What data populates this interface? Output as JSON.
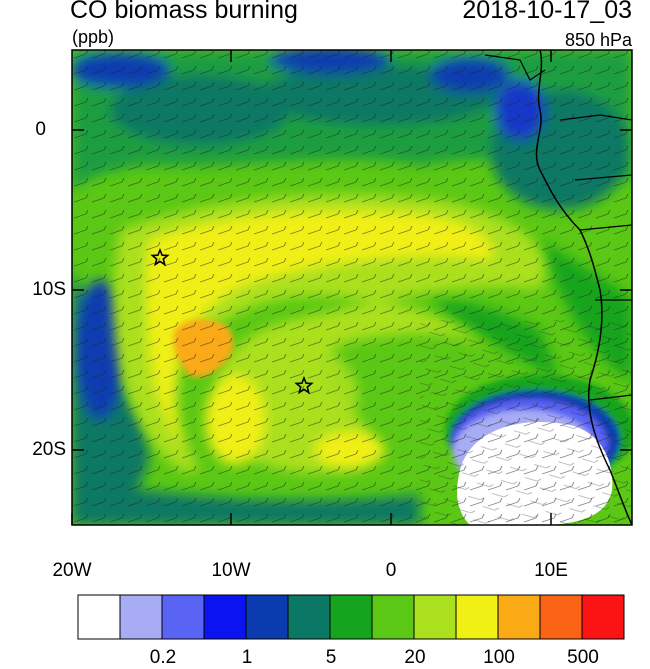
{
  "header": {
    "title": "CO biomass burning",
    "units": "(ppb)",
    "datetime": "2018-10-17_03",
    "level": "850 hPa"
  },
  "axes": {
    "y_ticks": [
      "0",
      "10S",
      "20S"
    ],
    "x_ticks": [
      "20W",
      "10W",
      "0",
      "10E"
    ]
  },
  "colorbar": {
    "colors": [
      "#ffffff",
      "#a8acf4",
      "#5a64f4",
      "#0a14f0",
      "#0a3cb0",
      "#0a7864",
      "#14a41e",
      "#5ac814",
      "#aae01e",
      "#f0f014",
      "#faaa14",
      "#fa6414",
      "#fa1414"
    ],
    "labels": [
      "0.2",
      "1",
      "5",
      "20",
      "100",
      "500"
    ]
  },
  "markers": [
    {
      "name": "star-marker-west",
      "lon": -14.5,
      "lat": -8
    },
    {
      "name": "star-marker-center",
      "lon": -5.5,
      "lat": -16
    }
  ]
}
